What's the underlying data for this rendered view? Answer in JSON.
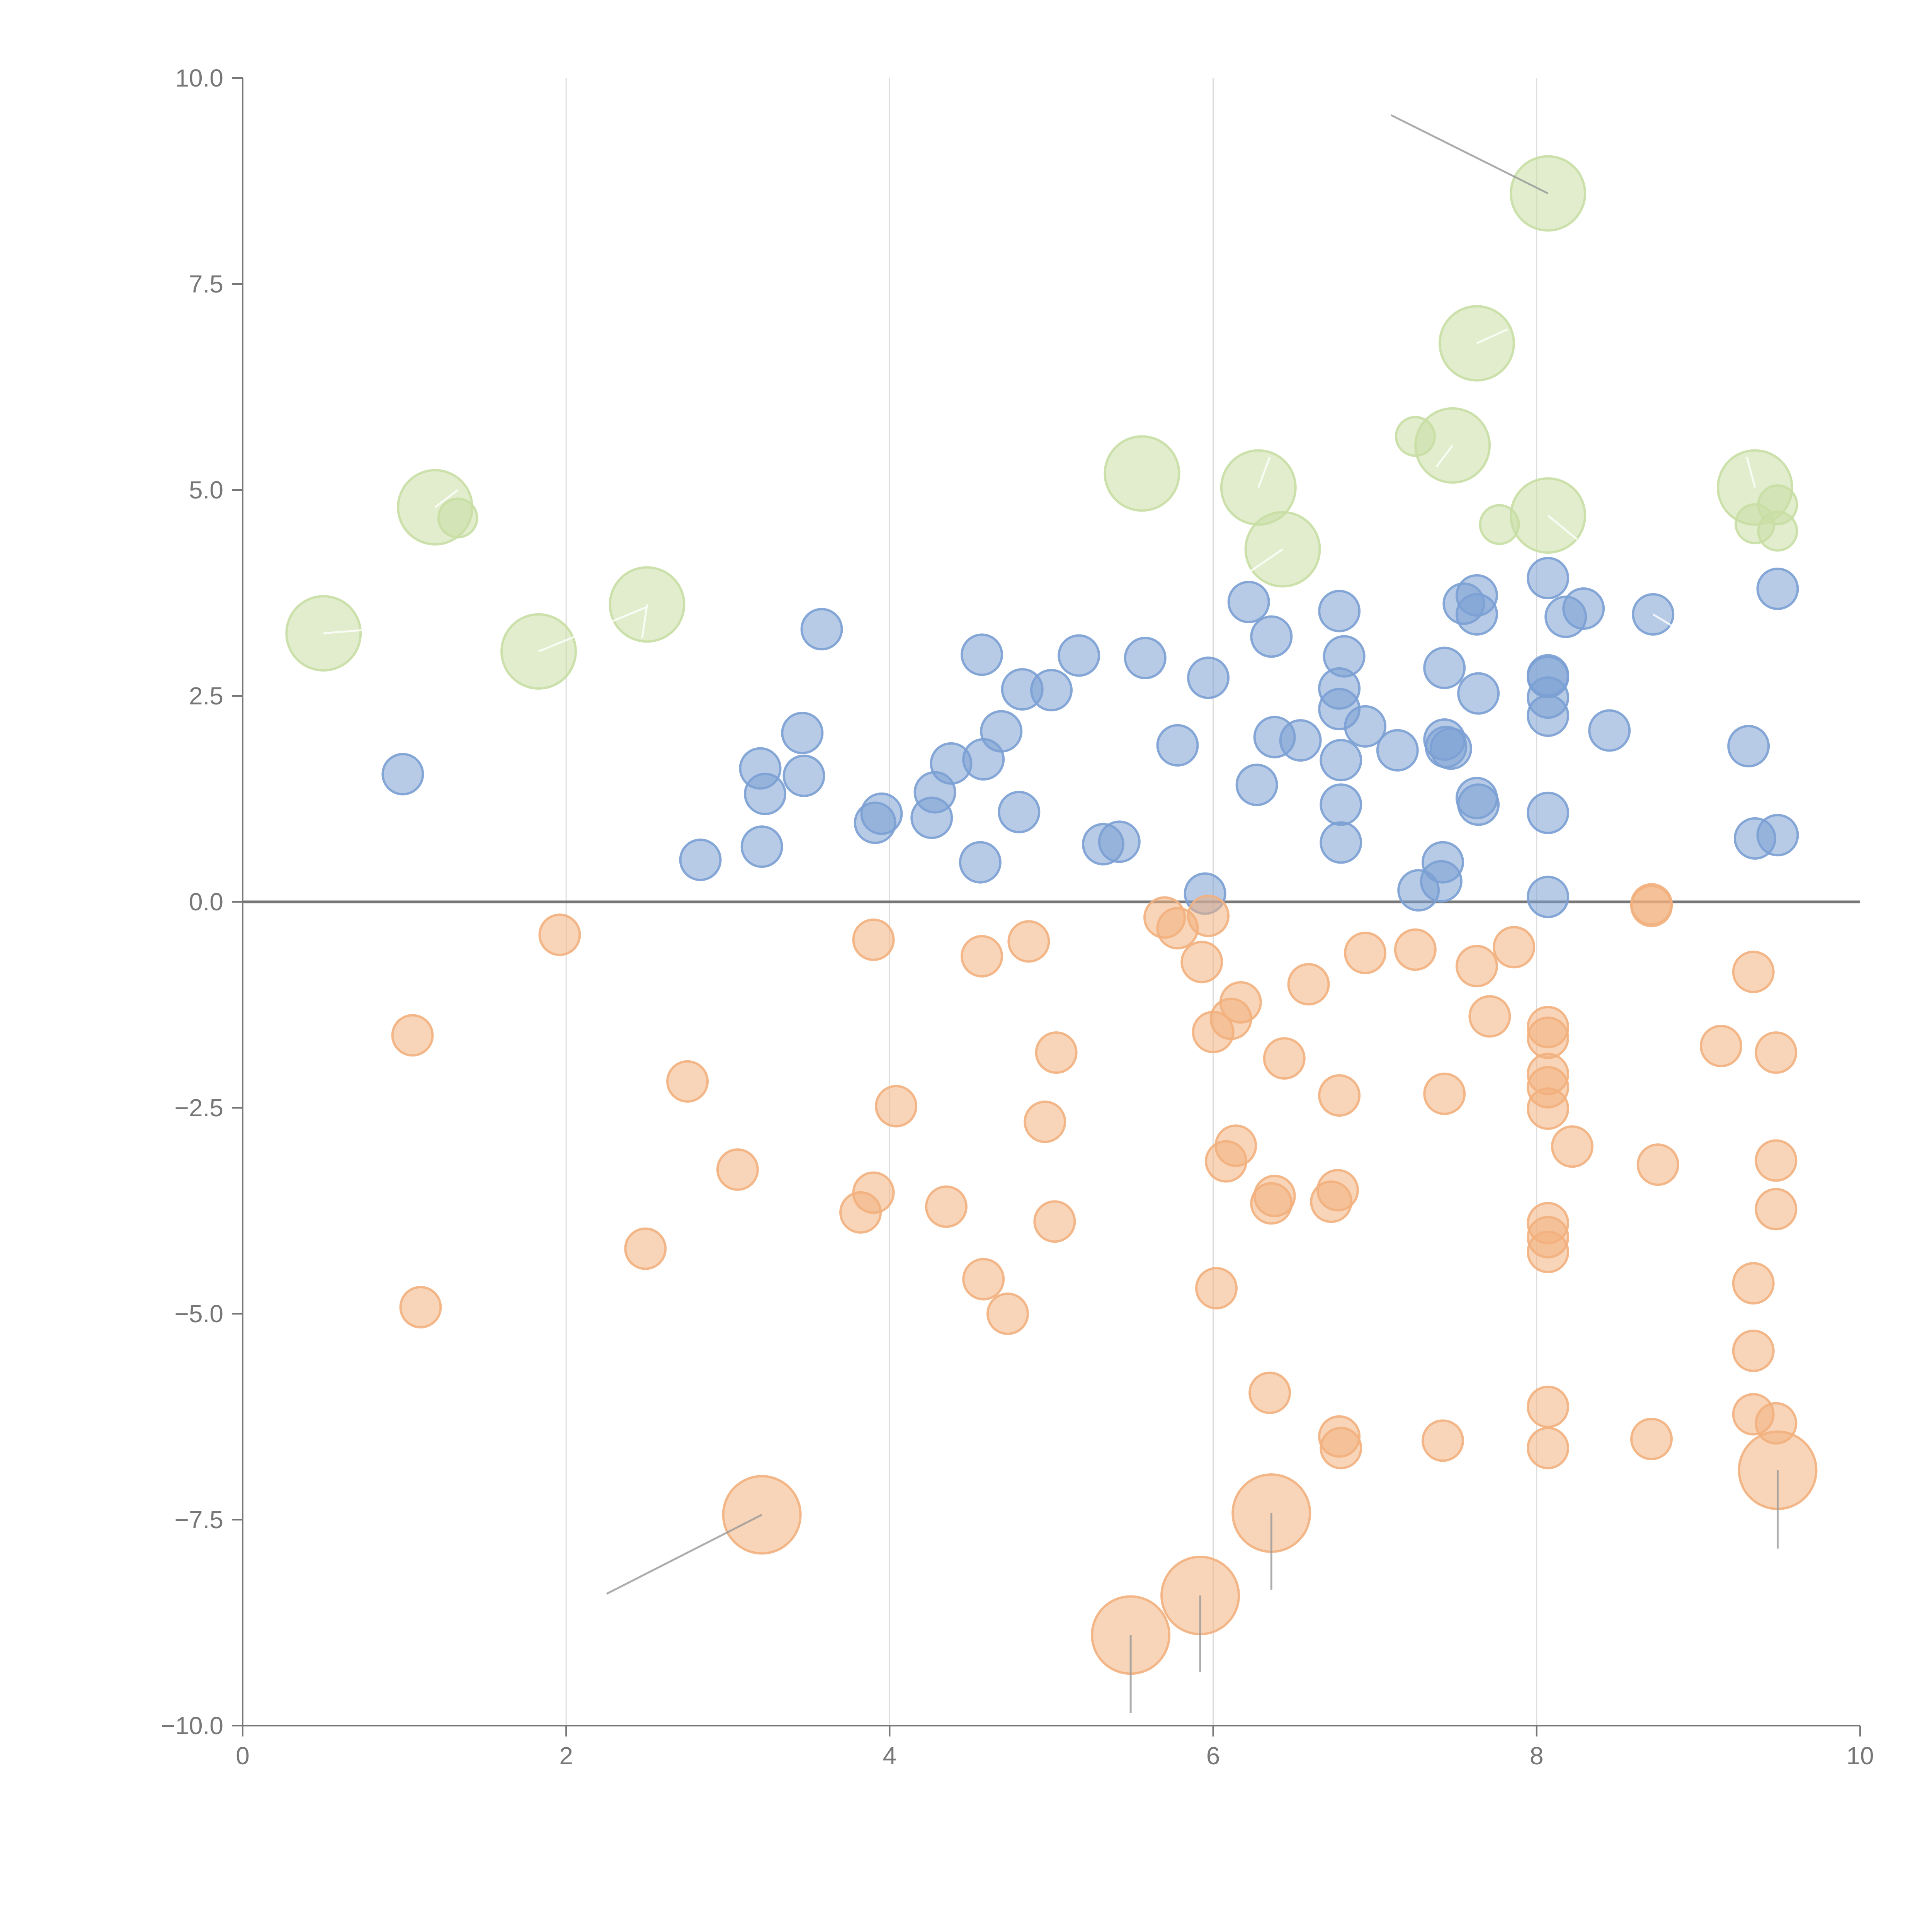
{
  "chart_data": {
    "type": "scatter",
    "title": "",
    "xlabel": "",
    "ylabel": "",
    "xlim": [
      0,
      10
    ],
    "ylim": [
      -10,
      10
    ],
    "x_ticks": [
      "0",
      "2",
      "4",
      "6",
      "8",
      "10"
    ],
    "y_ticks": [
      "−10.0",
      "−7.5",
      "−5.0",
      "−2.5",
      "0.0",
      "2.5",
      "5.0",
      "7.5",
      "10.0"
    ],
    "x_tick_values": [
      0,
      2,
      4,
      6,
      8,
      10
    ],
    "y_tick_values": [
      -10,
      -7.5,
      -5,
      -2.5,
      0,
      2.5,
      5,
      7.5,
      10
    ],
    "grid": "vertical",
    "zero_line": true,
    "series": [
      {
        "color": "#7ba0d4",
        "points": [
          [
            0.99,
            1.55
          ],
          [
            2.83,
            0.51
          ],
          [
            3.2,
            1.62
          ],
          [
            3.21,
            0.67
          ],
          [
            3.23,
            1.31
          ],
          [
            3.46,
            2.05
          ],
          [
            3.47,
            1.53
          ],
          [
            3.58,
            3.31
          ],
          [
            3.91,
            0.96
          ],
          [
            3.95,
            1.07
          ],
          [
            4.26,
            1.02
          ],
          [
            4.28,
            1.33
          ],
          [
            4.38,
            1.68
          ],
          [
            4.56,
            0.48
          ],
          [
            4.57,
            3.0
          ],
          [
            4.58,
            1.73
          ],
          [
            4.69,
            2.07
          ],
          [
            4.8,
            1.09
          ],
          [
            4.82,
            2.58
          ],
          [
            5.0,
            2.57
          ],
          [
            5.17,
            2.99
          ],
          [
            5.32,
            0.7
          ],
          [
            5.42,
            0.73
          ],
          [
            5.58,
            2.96
          ],
          [
            5.78,
            1.9
          ],
          [
            5.95,
            0.1
          ],
          [
            5.97,
            2.72
          ],
          [
            6.22,
            3.64
          ],
          [
            6.27,
            1.42
          ],
          [
            6.36,
            3.22
          ],
          [
            6.38,
            2.0
          ],
          [
            6.54,
            1.96
          ],
          [
            6.78,
            3.53
          ],
          [
            6.78,
            2.59
          ],
          [
            6.78,
            2.34
          ],
          [
            6.79,
            1.72
          ],
          [
            6.79,
            1.18
          ],
          [
            6.79,
            0.72
          ],
          [
            6.81,
            2.98
          ],
          [
            6.94,
            2.13
          ],
          [
            7.14,
            1.84
          ],
          [
            7.27,
            0.14
          ],
          [
            7.41,
            0.25
          ],
          [
            7.42,
            0.48
          ],
          [
            7.43,
            2.84
          ],
          [
            7.43,
            1.97
          ],
          [
            7.44,
            1.88
          ],
          [
            7.47,
            1.86
          ],
          [
            7.55,
            3.62
          ],
          [
            7.63,
            3.72
          ],
          [
            7.63,
            3.49
          ],
          [
            7.63,
            1.26
          ],
          [
            7.64,
            1.18
          ],
          [
            7.64,
            2.53
          ],
          [
            8.07,
            3.93
          ],
          [
            8.07,
            2.75
          ],
          [
            8.07,
            2.73
          ],
          [
            8.07,
            2.48
          ],
          [
            8.07,
            2.26
          ],
          [
            8.07,
            1.08
          ],
          [
            8.07,
            0.06
          ],
          [
            8.18,
            3.46
          ],
          [
            8.29,
            3.56
          ],
          [
            8.45,
            2.08
          ],
          [
            8.72,
            3.49
          ],
          [
            9.31,
            1.89
          ],
          [
            9.35,
            0.77
          ],
          [
            9.49,
            3.8
          ],
          [
            9.49,
            0.81
          ]
        ]
      },
      {
        "color": "#f2b07e",
        "points": [
          [
            1.96,
            -0.4
          ],
          [
            1.05,
            -1.62
          ],
          [
            1.1,
            -4.92
          ],
          [
            2.75,
            -2.18
          ],
          [
            2.49,
            -4.21
          ],
          [
            3.06,
            -3.25
          ],
          [
            3.82,
            -3.77
          ],
          [
            3.9,
            -3.53
          ],
          [
            3.9,
            -0.46
          ],
          [
            4.04,
            -2.48
          ],
          [
            4.35,
            -3.7
          ],
          [
            4.57,
            -0.66
          ],
          [
            4.58,
            -4.58
          ],
          [
            4.73,
            -5.0
          ],
          [
            4.86,
            -0.48
          ],
          [
            4.96,
            -2.67
          ],
          [
            5.02,
            -3.88
          ],
          [
            5.03,
            -1.83
          ],
          [
            5.7,
            -0.19
          ],
          [
            5.78,
            -0.32
          ],
          [
            5.93,
            -0.73
          ],
          [
            5.97,
            -0.17
          ],
          [
            6.0,
            -1.58
          ],
          [
            6.02,
            -4.69
          ],
          [
            6.08,
            -3.15
          ],
          [
            6.11,
            -1.42
          ],
          [
            6.14,
            -2.96
          ],
          [
            6.17,
            -1.22
          ],
          [
            6.35,
            -5.96
          ],
          [
            6.36,
            -3.66
          ],
          [
            6.38,
            -3.57
          ],
          [
            6.44,
            -1.9
          ],
          [
            6.59,
            -1.0
          ],
          [
            6.73,
            -3.64
          ],
          [
            6.77,
            -3.5
          ],
          [
            6.78,
            -2.35
          ],
          [
            6.78,
            -6.49
          ],
          [
            6.79,
            -6.63
          ],
          [
            6.94,
            -0.62
          ],
          [
            7.25,
            -0.58
          ],
          [
            7.42,
            -6.54
          ],
          [
            7.43,
            -2.33
          ],
          [
            7.63,
            -0.78
          ],
          [
            7.71,
            -1.39
          ],
          [
            7.86,
            -0.55
          ],
          [
            8.07,
            -1.52
          ],
          [
            8.07,
            -1.65
          ],
          [
            8.07,
            -2.09
          ],
          [
            8.07,
            -2.25
          ],
          [
            8.07,
            -2.51
          ],
          [
            8.07,
            -3.9
          ],
          [
            8.07,
            -4.07
          ],
          [
            8.07,
            -4.25
          ],
          [
            8.07,
            -6.13
          ],
          [
            8.07,
            -6.63
          ],
          [
            8.22,
            -2.97
          ],
          [
            8.71,
            -0.05
          ],
          [
            8.71,
            -0.03
          ],
          [
            8.71,
            -6.52
          ],
          [
            8.75,
            -3.19
          ],
          [
            9.14,
            -1.75
          ],
          [
            9.34,
            -0.85
          ],
          [
            9.34,
            -4.63
          ],
          [
            9.34,
            -5.45
          ],
          [
            9.34,
            -6.22
          ],
          [
            9.48,
            -1.83
          ],
          [
            9.48,
            -3.14
          ],
          [
            9.48,
            -3.73
          ],
          [
            9.48,
            -6.33
          ]
        ]
      },
      {
        "color": "#c8dea4",
        "points": [
          [
            8.07,
            8.6
          ],
          [
            7.63,
            6.78
          ],
          [
            7.25,
            5.65
          ],
          [
            7.48,
            5.54
          ],
          [
            5.56,
            5.2
          ],
          [
            6.28,
            5.03
          ],
          [
            9.35,
            5.03
          ],
          [
            8.07,
            4.69
          ],
          [
            9.49,
            4.82
          ],
          [
            9.35,
            4.59
          ],
          [
            9.49,
            4.5
          ],
          [
            7.77,
            4.58
          ],
          [
            6.43,
            4.28
          ],
          [
            1.19,
            4.79
          ],
          [
            1.33,
            4.66
          ],
          [
            2.5,
            3.61
          ],
          [
            1.83,
            3.04
          ],
          [
            0.5,
            3.26
          ]
        ]
      },
      {
        "color": "#f2b07e",
        "points": [
          [
            3.21,
            -7.44
          ],
          [
            6.36,
            -7.42
          ],
          [
            5.92,
            -8.42
          ],
          [
            5.49,
            -8.9
          ],
          [
            9.49,
            -6.9
          ]
        ]
      }
    ]
  }
}
